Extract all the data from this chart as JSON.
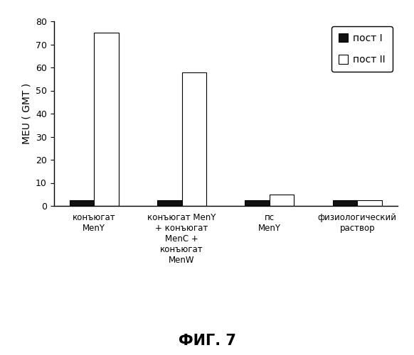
{
  "categories": [
    "конъюгат\nMenY",
    "конъюгат MenY\n+ конъюгат\nMenC +\nконъюгат\nMenW",
    "пс\nMenY",
    "физиологический\nраствор"
  ],
  "post1_values": [
    2.5,
    2.5,
    2.5,
    2.5
  ],
  "post2_values": [
    75.0,
    58.0,
    5.0,
    2.5
  ],
  "ylabel": "MEU ( GMT )",
  "ylim": [
    0,
    80
  ],
  "yticks": [
    0,
    10,
    20,
    30,
    40,
    50,
    60,
    70,
    80
  ],
  "legend_labels": [
    "пост I",
    "пост II"
  ],
  "bar_width": 0.28,
  "post1_color": "#111111",
  "post2_color": "#ffffff",
  "post2_edgecolor": "#000000",
  "post1_edgecolor": "#000000",
  "figure_title": "ФИГ. 7",
  "background_color": "#ffffff"
}
